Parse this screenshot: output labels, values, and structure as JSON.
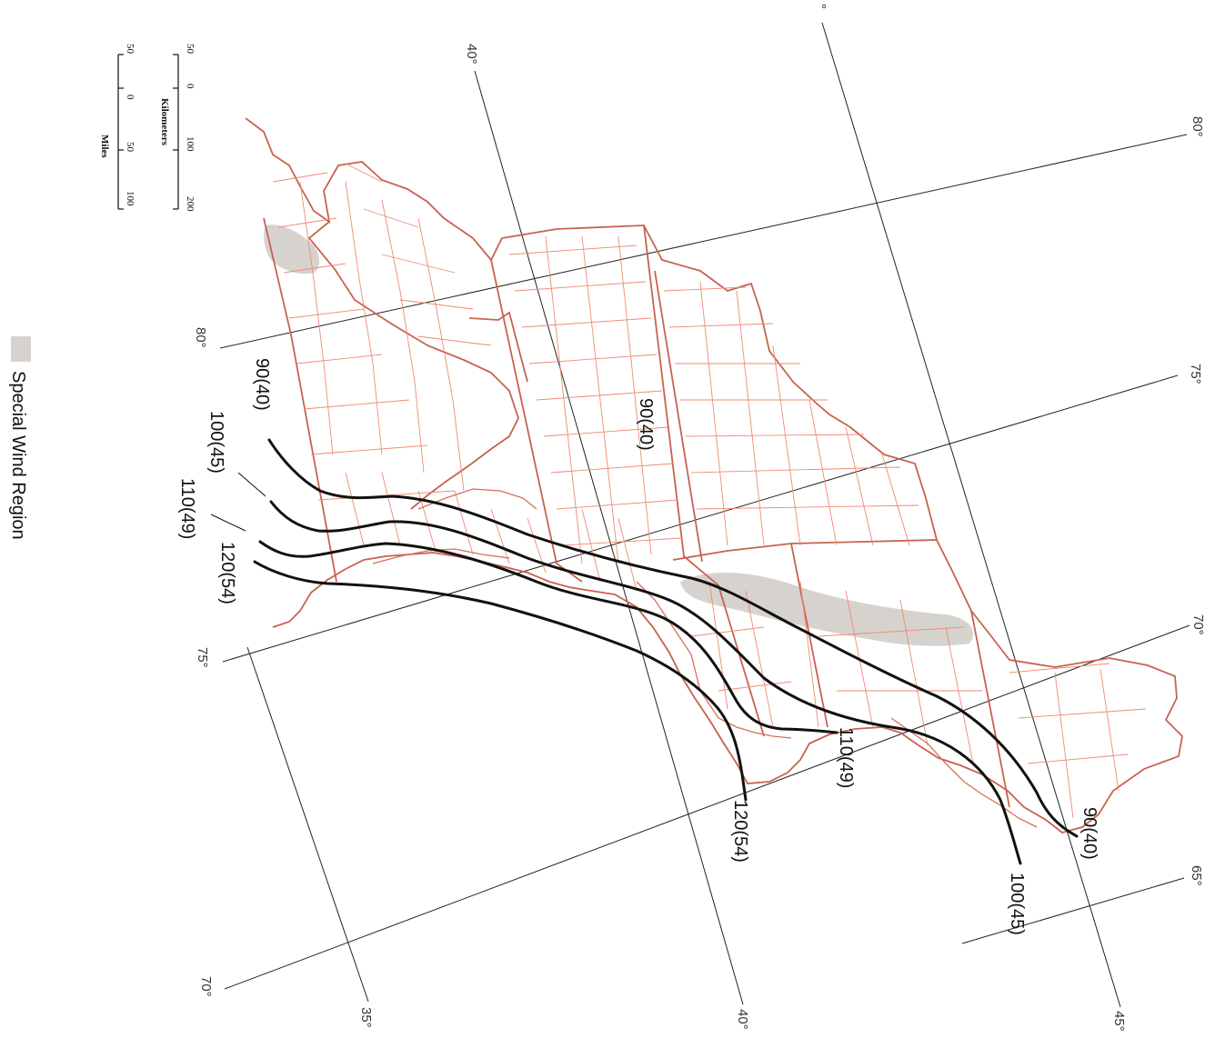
{
  "graticule": {
    "latitudes": [
      "35°",
      "40°",
      "40°",
      "45°"
    ],
    "longitudes": [
      "80°",
      "80°",
      "75°",
      "75°",
      "70°",
      "70°",
      "65°"
    ],
    "top_partial": "°"
  },
  "contours": [
    {
      "value": "90(40)",
      "value2": "90(40)"
    },
    {
      "value": "100(45)",
      "value2": "100(45)"
    },
    {
      "value": "110(49)",
      "value2": "110(49)"
    },
    {
      "value": "120(54)",
      "value2": "120(54)"
    }
  ],
  "interior_label": "90(40)",
  "scale_bar": {
    "km_title": "Kilometers",
    "km_ticks": [
      "50",
      "0",
      "100",
      "200"
    ],
    "mi_title": "Miles",
    "mi_ticks": [
      "50",
      "0",
      "50",
      "100"
    ]
  },
  "legend": {
    "label": "Special Wind Region",
    "swatch_color": "#d6d3cf"
  },
  "colors": {
    "state_lines": "#c8624f",
    "county_lines": "#f08a72",
    "contours": "#111111"
  }
}
